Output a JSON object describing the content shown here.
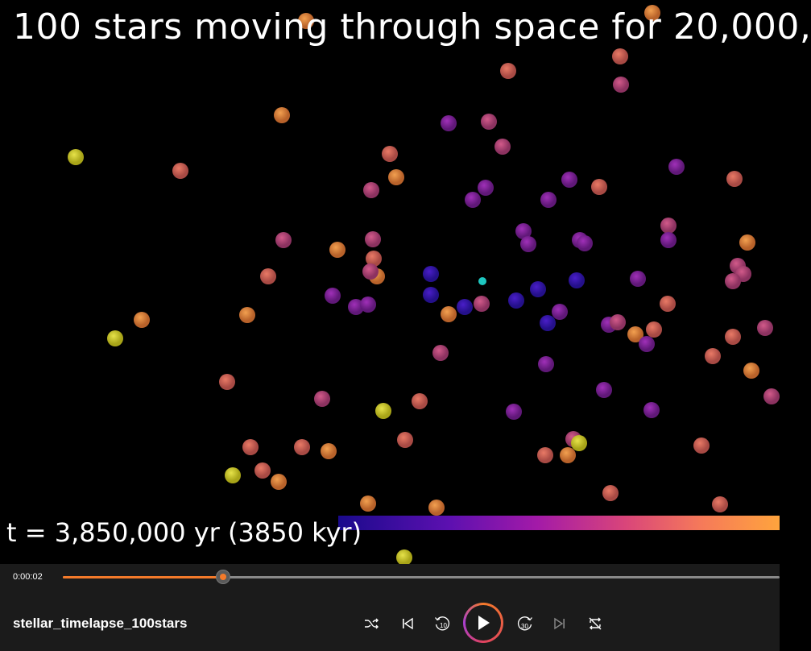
{
  "video": {
    "title": "100 stars moving through space for 20,000,",
    "timecode": "t =  3,850,000 yr   (3850 kyr)"
  },
  "player": {
    "current_time": "0:00:02",
    "progress_percent": 22.4,
    "file_title": "stellar_timelapse_100stars",
    "accent_color": "#f47a2a",
    "controls": [
      "shuffle-icon",
      "previous-icon",
      "rewind-10-icon",
      "play-icon",
      "forward-30-icon",
      "next-icon",
      "repeat-off-icon"
    ],
    "rewind_label": "10",
    "forward_label": "30"
  }
}
